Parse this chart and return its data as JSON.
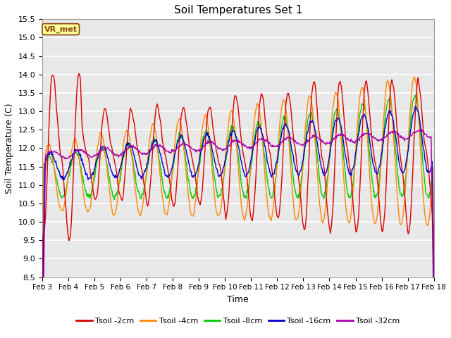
{
  "title": "Soil Temperatures Set 1",
  "xlabel": "Time",
  "ylabel": "Soil Temperature (C)",
  "ylim": [
    8.5,
    15.5
  ],
  "yticks": [
    8.5,
    9.0,
    9.5,
    10.0,
    10.5,
    11.0,
    11.5,
    12.0,
    12.5,
    13.0,
    13.5,
    14.0,
    14.5,
    15.0,
    15.5
  ],
  "date_labels": [
    "Feb 3",
    "Feb 4",
    "Feb 5",
    "Feb 6",
    "Feb 7",
    "Feb 8",
    "Feb 9",
    "Feb 10",
    "Feb 11",
    "Feb 12",
    "Feb 13",
    "Feb 14",
    "Feb 15",
    "Feb 16",
    "Feb 17",
    "Feb 18"
  ],
  "series_colors": [
    "#dd0000",
    "#ff8800",
    "#00cc00",
    "#0000cc",
    "#aa00aa"
  ],
  "series_labels": [
    "Tsoil -2cm",
    "Tsoil -4cm",
    "Tsoil -8cm",
    "Tsoil -16cm",
    "Tsoil -32cm"
  ],
  "bg_color": "#e8e8e8",
  "plot_bg": "#e8e8e8",
  "annotation_text": "VR_met",
  "annotation_bg": "#ffff99",
  "annotation_border": "#8b4513",
  "linewidth": 1.0
}
